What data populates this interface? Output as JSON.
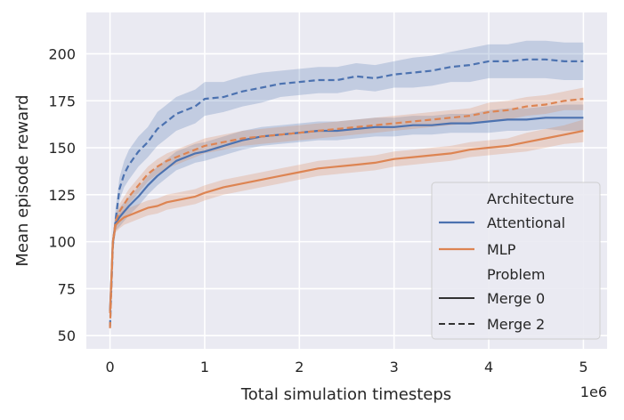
{
  "chart_data": {
    "type": "line",
    "xlabel": "Total simulation timesteps",
    "ylabel": "Mean episode reward",
    "x_offset_label": "1e6",
    "xlim": [
      -0.25,
      5.25
    ],
    "ylim": [
      43,
      222
    ],
    "x_ticks": [
      0,
      1,
      2,
      3,
      4,
      5
    ],
    "x_tick_labels": [
      "0",
      "1",
      "2",
      "3",
      "4",
      "5"
    ],
    "y_ticks": [
      50,
      75,
      100,
      125,
      150,
      175,
      200
    ],
    "y_tick_labels": [
      "50",
      "75",
      "100",
      "125",
      "150",
      "175",
      "200"
    ],
    "grid": true,
    "legend_position": "lower-right",
    "legend": {
      "hue_title": "Architecture",
      "style_title": "Problem",
      "hue_entries": [
        {
          "label": "Attentional",
          "color": "#4c72b0"
        },
        {
          "label": "MLP",
          "color": "#dd8452"
        }
      ],
      "style_entries": [
        {
          "label": "Merge 0",
          "dash": "solid"
        },
        {
          "label": "Merge 2",
          "dash": "dashed"
        }
      ]
    },
    "x": [
      0,
      0.03,
      0.06,
      0.1,
      0.15,
      0.2,
      0.3,
      0.4,
      0.5,
      0.6,
      0.7,
      0.8,
      0.9,
      1.0,
      1.2,
      1.4,
      1.6,
      1.8,
      2.0,
      2.2,
      2.4,
      2.6,
      2.8,
      3.0,
      3.2,
      3.4,
      3.6,
      3.8,
      4.0,
      4.2,
      4.4,
      4.6,
      4.8,
      5.0
    ],
    "series": [
      {
        "architecture": "Attentional",
        "problem": "Merge 2",
        "color": "#4c72b0",
        "dash": "dashed",
        "values": [
          55,
          98,
          112,
          128,
          136,
          141,
          148,
          153,
          160,
          164,
          168,
          170,
          172,
          176,
          177,
          180,
          182,
          184,
          185,
          186,
          186,
          188,
          187,
          189,
          190,
          191,
          193,
          194,
          196,
          196,
          197,
          197,
          196,
          196
        ],
        "ci": [
          3,
          5,
          6,
          6,
          7,
          8,
          8,
          8,
          9,
          9,
          9,
          9,
          9,
          9,
          8,
          8,
          8,
          7,
          7,
          7,
          7,
          7,
          7,
          7,
          8,
          8,
          8,
          9,
          9,
          9,
          10,
          10,
          10,
          10
        ]
      },
      {
        "architecture": "Attentional",
        "problem": "Merge 0",
        "color": "#4c72b0",
        "dash": "solid",
        "values": [
          63,
          100,
          110,
          113,
          116,
          119,
          124,
          130,
          135,
          139,
          143,
          145,
          147,
          148,
          151,
          154,
          156,
          157,
          158,
          159,
          159,
          160,
          161,
          161,
          162,
          162,
          163,
          163,
          164,
          165,
          165,
          166,
          166,
          166
        ],
        "ci": [
          3,
          4,
          4,
          5,
          5,
          5,
          5,
          5,
          5,
          5,
          5,
          5,
          5,
          5,
          5,
          5,
          5,
          5,
          5,
          5,
          5,
          5,
          5,
          5,
          5,
          5,
          5,
          5,
          6,
          6,
          6,
          6,
          7,
          7
        ]
      },
      {
        "architecture": "MLP",
        "problem": "Merge 2",
        "color": "#dd8452",
        "dash": "dashed",
        "values": [
          54,
          100,
          111,
          116,
          120,
          124,
          130,
          136,
          140,
          143,
          145,
          147,
          149,
          151,
          153,
          155,
          156,
          157,
          158,
          159,
          160,
          161,
          162,
          163,
          164,
          165,
          166,
          167,
          169,
          170,
          172,
          173,
          175,
          176
        ],
        "ci": [
          3,
          4,
          4,
          4,
          4,
          4,
          4,
          4,
          4,
          4,
          4,
          4,
          4,
          4,
          4,
          4,
          4,
          4,
          4,
          4,
          4,
          4,
          4,
          4,
          4,
          4,
          4,
          4,
          5,
          5,
          5,
          5,
          5,
          6
        ]
      },
      {
        "architecture": "MLP",
        "problem": "Merge 0",
        "color": "#dd8452",
        "dash": "solid",
        "values": [
          62,
          100,
          109,
          111,
          113,
          114,
          116,
          118,
          119,
          121,
          122,
          123,
          124,
          126,
          129,
          131,
          133,
          135,
          137,
          139,
          140,
          141,
          142,
          144,
          145,
          146,
          147,
          149,
          150,
          151,
          153,
          155,
          157,
          159
        ],
        "ci": [
          3,
          4,
          4,
          4,
          4,
          4,
          4,
          4,
          4,
          4,
          4,
          4,
          4,
          4,
          4,
          4,
          4,
          4,
          4,
          4,
          4,
          4,
          4,
          4,
          4,
          4,
          4,
          4,
          4,
          4,
          5,
          5,
          5,
          6
        ]
      }
    ]
  }
}
